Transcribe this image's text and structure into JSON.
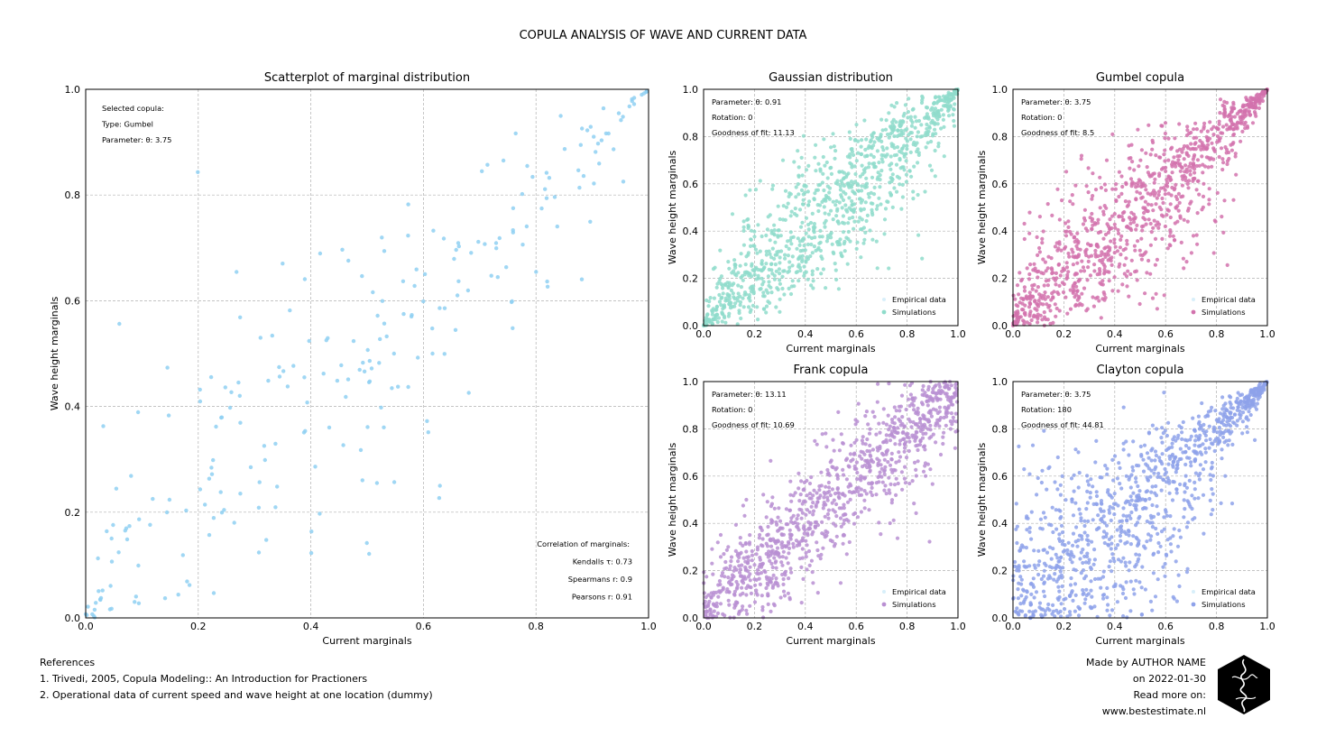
{
  "title": "COPULA ANALYSIS OF WAVE AND CURRENT DATA",
  "colors": {
    "empirical": "#8fd0f2",
    "gaussian": "#8fdccb",
    "gumbel": "#d272ad",
    "frank": "#b98fd2",
    "clayton": "#8ea2ea",
    "grid": "#b0b0b0"
  },
  "chart_data": [
    {
      "type": "scatter",
      "title": "Scatterplot of marginal distribution",
      "xlabel": "Current marginals",
      "ylabel": "Wave height marginals",
      "xlim": [
        0,
        1
      ],
      "ylim": [
        0,
        1
      ],
      "xticks": [
        "0.0",
        "0.2",
        "0.4",
        "0.6",
        "0.8",
        "1.0"
      ],
      "yticks": [
        "0.0",
        "0.2",
        "0.4",
        "0.6",
        "0.8",
        "1.0"
      ],
      "grid": true,
      "info_lines": [
        "Selected copula:",
        "Type: Gumbel",
        "Parameter: θ: 3.75"
      ],
      "correlation_lines": [
        "Correlation of marginals:",
        "Kendalls τ: 0.73",
        "Spearmans r: 0.9",
        "Pearsons r: 0.91"
      ],
      "series": [
        {
          "color_key": "empirical",
          "n_points": 250,
          "copula": "gumbel",
          "theta": 3.75,
          "seed": 11
        }
      ]
    },
    {
      "type": "scatter",
      "title": "Gaussian distribution",
      "xlabel": "Current marginals",
      "ylabel": "Wave height marginals",
      "xlim": [
        0,
        1
      ],
      "ylim": [
        0,
        1
      ],
      "xticks": [
        "0.0",
        "0.2",
        "0.4",
        "0.6",
        "0.8",
        "1.0"
      ],
      "yticks": [
        "0.0",
        "0.2",
        "0.4",
        "0.6",
        "0.8",
        "1.0"
      ],
      "grid": true,
      "info_lines": [
        "Parameter: θ: 0.91",
        "Rotation: 0",
        "Goodness of fit: 11.13"
      ],
      "legend": [
        "Empirical data",
        "Simulations"
      ],
      "legend_placement": "lower-right",
      "series": [
        {
          "name": "Simulations",
          "color_key": "gaussian",
          "n_points": 1000,
          "copula": "gaussian",
          "theta": 0.91,
          "seed": 21
        }
      ]
    },
    {
      "type": "scatter",
      "title": "Gumbel copula",
      "xlabel": "Current marginals",
      "ylabel": "Wave height marginals",
      "xlim": [
        0,
        1
      ],
      "ylim": [
        0,
        1
      ],
      "xticks": [
        "0.0",
        "0.2",
        "0.4",
        "0.6",
        "0.8",
        "1.0"
      ],
      "yticks": [
        "0.0",
        "0.2",
        "0.4",
        "0.6",
        "0.8",
        "1.0"
      ],
      "grid": true,
      "info_lines": [
        "Parameter: θ: 3.75",
        "Rotation: 0",
        "Goodness of fit: 8.5"
      ],
      "legend": [
        "Empirical data",
        "Simulations"
      ],
      "legend_placement": "lower-right",
      "series": [
        {
          "name": "Simulations",
          "color_key": "gumbel",
          "n_points": 1000,
          "copula": "gumbel",
          "theta": 3.75,
          "seed": 31
        }
      ]
    },
    {
      "type": "scatter",
      "title": "Frank copula",
      "xlabel": "Current marginals",
      "ylabel": "Wave height marginals",
      "xlim": [
        0,
        1
      ],
      "ylim": [
        0,
        1
      ],
      "xticks": [
        "0.0",
        "0.2",
        "0.4",
        "0.6",
        "0.8",
        "1.0"
      ],
      "yticks": [
        "0.0",
        "0.2",
        "0.4",
        "0.6",
        "0.8",
        "1.0"
      ],
      "grid": true,
      "info_lines": [
        "Parameter: θ: 13.11",
        "Rotation: 0",
        "Goodness of fit: 10.69"
      ],
      "legend": [
        "Empirical data",
        "Simulations"
      ],
      "legend_placement": "lower-right",
      "series": [
        {
          "name": "Simulations",
          "color_key": "frank",
          "n_points": 1000,
          "copula": "frank",
          "theta": 13.11,
          "seed": 41
        }
      ]
    },
    {
      "type": "scatter",
      "title": "Clayton copula",
      "xlabel": "Current marginals",
      "ylabel": "Wave height marginals",
      "xlim": [
        0,
        1
      ],
      "ylim": [
        0,
        1
      ],
      "xticks": [
        "0.0",
        "0.2",
        "0.4",
        "0.6",
        "0.8",
        "1.0"
      ],
      "yticks": [
        "0.0",
        "0.2",
        "0.4",
        "0.6",
        "0.8",
        "1.0"
      ],
      "grid": true,
      "info_lines": [
        "Parameter: θ: 3.75",
        "Rotation: 180",
        "Goodness of fit: 44.81"
      ],
      "legend": [
        "Empirical data",
        "Simulations"
      ],
      "legend_placement": "lower-right",
      "series": [
        {
          "name": "Simulations",
          "color_key": "clayton",
          "n_points": 1000,
          "copula": "clayton",
          "theta": 3.75,
          "rotation": 180,
          "seed": 51
        }
      ]
    }
  ],
  "references": {
    "heading": "References",
    "items": [
      "1. Trivedi, 2005, Copula Modeling:: An Introduction for Practioners",
      "2. Operational data of current speed and wave height at one location (dummy)"
    ]
  },
  "credits": {
    "line1": "Made by AUTHOR NAME",
    "line2": "on 2022-01-30",
    "line3": "Read more on:",
    "line4": "www.bestestimate.nl"
  },
  "logo_icon": "hexagon-signature-logo"
}
